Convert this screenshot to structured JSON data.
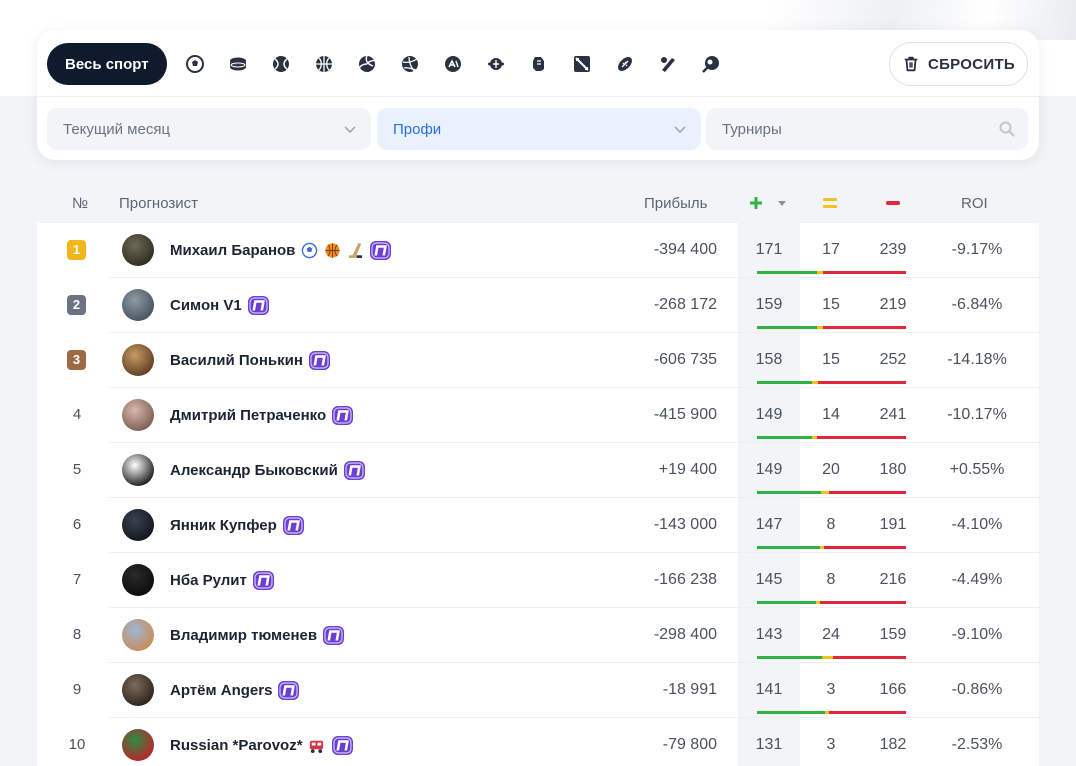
{
  "filters": {
    "all_sport_label": "Весь спорт",
    "sports": [
      {
        "icon": "football-icon"
      },
      {
        "icon": "hockey-puck-icon"
      },
      {
        "icon": "tennis-icon"
      },
      {
        "icon": "basketball-icon"
      },
      {
        "icon": "volleyball-icon"
      },
      {
        "icon": "handball-icon"
      },
      {
        "icon": "esports-icon"
      },
      {
        "icon": "table-tennis-icon"
      },
      {
        "icon": "mma-icon"
      },
      {
        "icon": "dota-icon"
      },
      {
        "icon": "american-football-icon"
      },
      {
        "icon": "baseball-icon"
      },
      {
        "icon": "billiards-icon"
      }
    ],
    "reset_label": "СБРОСИТЬ",
    "period": "Текущий месяц",
    "category": "Профи",
    "tournaments_placeholder": "Турниры"
  },
  "table": {
    "headers": {
      "rank": "№",
      "forecaster": "Прогнозист",
      "profit": "Прибыль",
      "roi": "ROI"
    },
    "colors": {
      "win": "#2fb344",
      "draw": "#f3c21b",
      "loss": "#e2263b",
      "pro_badge": "#6b3fd6"
    },
    "rows": [
      {
        "rank": "1",
        "name": "Михаил Баранов",
        "sports": [
          "football-icon",
          "basketball-icon",
          "hockey-icon"
        ],
        "profit": "-394 400",
        "wins": "171",
        "draws": "17",
        "losses": "239",
        "roi": "-9.17%",
        "medal": "gold"
      },
      {
        "rank": "2",
        "name": "Симон V1",
        "sports": [],
        "profit": "-268 172",
        "wins": "159",
        "draws": "15",
        "losses": "219",
        "roi": "-6.84%",
        "medal": "silver"
      },
      {
        "rank": "3",
        "name": "Василий Понькин",
        "sports": [],
        "profit": "-606 735",
        "wins": "158",
        "draws": "15",
        "losses": "252",
        "roi": "-14.18%",
        "medal": "bronze"
      },
      {
        "rank": "4",
        "name": "Дмитрий Петраченко",
        "sports": [],
        "profit": "-415 900",
        "wins": "149",
        "draws": "14",
        "losses": "241",
        "roi": "-10.17%",
        "medal": ""
      },
      {
        "rank": "5",
        "name": "Александр Быковский",
        "sports": [],
        "profit": "+19 400",
        "wins": "149",
        "draws": "20",
        "losses": "180",
        "roi": "+0.55%",
        "medal": ""
      },
      {
        "rank": "6",
        "name": "Янник Купфер",
        "sports": [],
        "profit": "-143 000",
        "wins": "147",
        "draws": "8",
        "losses": "191",
        "roi": "-4.10%",
        "medal": ""
      },
      {
        "rank": "7",
        "name": "Нба Рулит",
        "sports": [],
        "profit": "-166 238",
        "wins": "145",
        "draws": "8",
        "losses": "216",
        "roi": "-4.49%",
        "medal": ""
      },
      {
        "rank": "8",
        "name": "Владимир тюменев",
        "sports": [],
        "profit": "-298 400",
        "wins": "143",
        "draws": "24",
        "losses": "159",
        "roi": "-9.10%",
        "medal": ""
      },
      {
        "rank": "9",
        "name": "Артём Angers",
        "sports": [],
        "profit": "-18 991",
        "wins": "141",
        "draws": "3",
        "losses": "166",
        "roi": "-0.86%",
        "medal": ""
      },
      {
        "rank": "10",
        "name": "Russian *Parovoz*",
        "sports": [
          "train-icon"
        ],
        "profit": "-79 800",
        "wins": "131",
        "draws": "3",
        "losses": "182",
        "roi": "-2.53%",
        "medal": ""
      }
    ]
  }
}
